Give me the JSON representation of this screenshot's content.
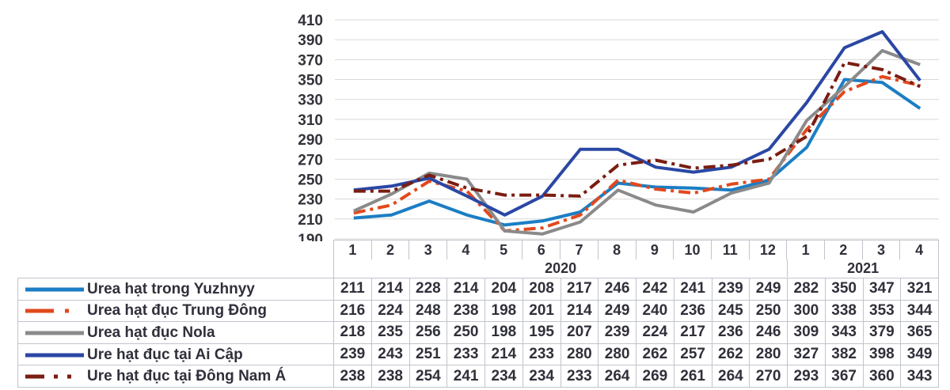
{
  "chart_data": {
    "type": "line",
    "title": "",
    "xlabel": "",
    "ylabel": "",
    "grid": true,
    "legend_position": "table-left",
    "y_axis": {
      "min": 190,
      "max": 410,
      "step": 20,
      "ticks": [
        410,
        390,
        370,
        350,
        330,
        310,
        290,
        270,
        250,
        230,
        210,
        190
      ]
    },
    "categories": [
      "1",
      "2",
      "3",
      "4",
      "5",
      "6",
      "7",
      "8",
      "9",
      "10",
      "11",
      "12",
      "1",
      "2",
      "3",
      "4"
    ],
    "year_groups": [
      {
        "label": "2020",
        "span": 12
      },
      {
        "label": "2021",
        "span": 4
      }
    ],
    "series": [
      {
        "name": "Urea hạt trong Yuzhnyy",
        "slug": "yuzhnyy",
        "color": "#1b7ec4",
        "dash": "solid",
        "values": [
          211,
          214,
          228,
          214,
          204,
          208,
          217,
          246,
          242,
          241,
          239,
          249,
          282,
          350,
          347,
          321
        ]
      },
      {
        "name": "Urea hạt đục Trung Đông",
        "slug": "trung-dong",
        "color": "#e1491d",
        "dash": "dash-dot",
        "values": [
          216,
          224,
          248,
          238,
          198,
          201,
          214,
          249,
          240,
          236,
          245,
          250,
          300,
          338,
          353,
          344
        ]
      },
      {
        "name": "Urea hạt đục Nola",
        "slug": "nola",
        "color": "#8a8a8a",
        "dash": "solid",
        "values": [
          218,
          235,
          256,
          250,
          198,
          195,
          207,
          239,
          224,
          217,
          236,
          246,
          309,
          343,
          379,
          365
        ]
      },
      {
        "name": "Ure hạt đục tại Ai Cập",
        "slug": "ai-cap",
        "color": "#2a47a4",
        "dash": "solid",
        "values": [
          239,
          243,
          251,
          233,
          214,
          233,
          280,
          280,
          262,
          257,
          262,
          280,
          327,
          382,
          398,
          349
        ]
      },
      {
        "name": "Ure hạt đục tại Đông Nam Á",
        "slug": "dong-nam-a",
        "color": "#7a1d12",
        "dash": "dash-dot",
        "legend_dash": "dash-dot-dot",
        "values": [
          238,
          238,
          254,
          241,
          234,
          234,
          233,
          264,
          269,
          261,
          264,
          270,
          293,
          367,
          360,
          343
        ]
      }
    ],
    "colors": {
      "gridline": "#d8d8d8",
      "table_border": "#c0c4cc",
      "text": "#30303b"
    }
  }
}
